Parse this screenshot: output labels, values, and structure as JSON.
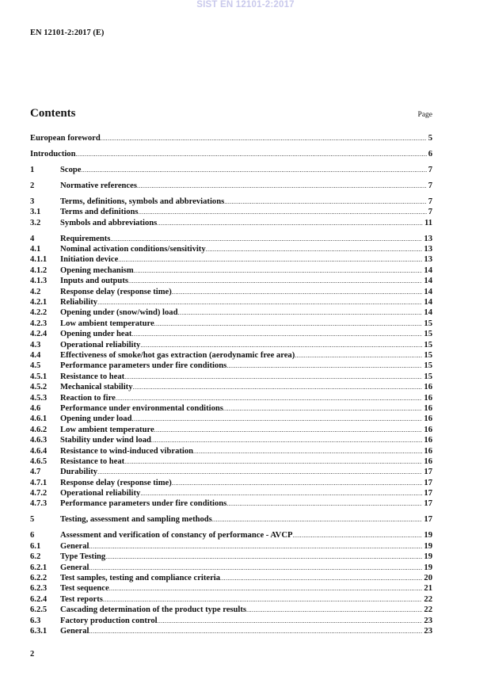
{
  "watermark": "SIST EN 12101-2:2017",
  "header": {
    "doc_id": "EN 12101-2:2017 (E)"
  },
  "contents": {
    "title": "Contents",
    "page_label": "Page",
    "groups": [
      [
        {
          "num": "",
          "title": "European foreword",
          "page": "5"
        }
      ],
      [
        {
          "num": "",
          "title": "Introduction",
          "page": "6"
        }
      ],
      [
        {
          "num": "1",
          "title": "Scope",
          "page": "7"
        }
      ],
      [
        {
          "num": "2",
          "title": "Normative references",
          "page": "7"
        }
      ],
      [
        {
          "num": "3",
          "title": "Terms, definitions, symbols and abbreviations",
          "page": "7"
        },
        {
          "num": "3.1",
          "title": "Terms and definitions",
          "page": "7"
        },
        {
          "num": "3.2",
          "title": "Symbols and abbreviations",
          "page": "11"
        }
      ],
      [
        {
          "num": "4",
          "title": "Requirements",
          "page": "13"
        },
        {
          "num": "4.1",
          "title": "Nominal activation conditions/sensitivity",
          "page": "13"
        },
        {
          "num": "4.1.1",
          "title": "Initiation device",
          "page": "13"
        },
        {
          "num": "4.1.2",
          "title": "Opening mechanism",
          "page": "14"
        },
        {
          "num": "4.1.3",
          "title": "Inputs and outputs",
          "page": "14"
        },
        {
          "num": "4.2",
          "title": "Response delay (response time)",
          "page": "14"
        },
        {
          "num": "4.2.1",
          "title": "Reliability",
          "page": "14"
        },
        {
          "num": "4.2.2",
          "title": "Opening under (snow/wind) load",
          "page": "14"
        },
        {
          "num": "4.2.3",
          "title": "Low ambient temperature",
          "page": "15"
        },
        {
          "num": "4.2.4",
          "title": "Opening under heat",
          "page": "15"
        },
        {
          "num": "4.3",
          "title": "Operational reliability",
          "page": "15"
        },
        {
          "num": "4.4",
          "title": "Effectiveness of smoke/hot gas extraction (aerodynamic free area)",
          "page": "15"
        },
        {
          "num": "4.5",
          "title": "Performance parameters under fire conditions",
          "page": "15"
        },
        {
          "num": "4.5.1",
          "title": "Resistance to heat",
          "page": "15"
        },
        {
          "num": "4.5.2",
          "title": "Mechanical stability",
          "page": "16"
        },
        {
          "num": "4.5.3",
          "title": "Reaction to fire",
          "page": "16"
        },
        {
          "num": "4.6",
          "title": "Performance under environmental conditions",
          "page": "16"
        },
        {
          "num": "4.6.1",
          "title": "Opening under load",
          "page": "16"
        },
        {
          "num": "4.6.2",
          "title": "Low ambient temperature",
          "page": "16"
        },
        {
          "num": "4.6.3",
          "title": "Stability under wind load",
          "page": "16"
        },
        {
          "num": "4.6.4",
          "title": "Resistance to wind-induced vibration",
          "page": "16"
        },
        {
          "num": "4.6.5",
          "title": "Resistance to heat",
          "page": "16"
        },
        {
          "num": "4.7",
          "title": "Durability",
          "page": "17"
        },
        {
          "num": "4.7.1",
          "title": "Response delay (response time)",
          "page": "17"
        },
        {
          "num": "4.7.2",
          "title": "Operational reliability",
          "page": "17"
        },
        {
          "num": "4.7.3",
          "title": "Performance parameters under fire conditions",
          "page": "17"
        }
      ],
      [
        {
          "num": "5",
          "title": "Testing, assessment and sampling methods",
          "page": "17"
        }
      ],
      [
        {
          "num": "6",
          "title": "Assessment and verification of constancy of performance - AVCP",
          "page": "19"
        },
        {
          "num": "6.1",
          "title": "General",
          "page": "19"
        },
        {
          "num": "6.2",
          "title": "Type Testing",
          "page": "19"
        },
        {
          "num": "6.2.1",
          "title": "General",
          "page": "19"
        },
        {
          "num": "6.2.2",
          "title": "Test samples, testing and compliance criteria",
          "page": "20"
        },
        {
          "num": "6.2.3",
          "title": "Test sequence",
          "page": "21"
        },
        {
          "num": "6.2.4",
          "title": "Test reports",
          "page": "22"
        },
        {
          "num": "6.2.5",
          "title": "Cascading determination of the product type results",
          "page": "22"
        },
        {
          "num": "6.3",
          "title": "Factory production control",
          "page": "23"
        },
        {
          "num": "6.3.1",
          "title": "General",
          "page": "23"
        }
      ]
    ]
  },
  "footer": {
    "page_number": "2"
  }
}
